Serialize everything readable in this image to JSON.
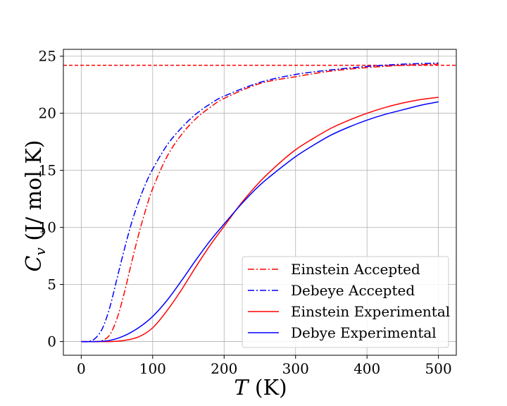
{
  "chart_data": {
    "type": "line",
    "title": "",
    "xlabel": "T (K)",
    "ylabel": "Cv (J/ mol K)",
    "xlim": [
      -25,
      525
    ],
    "ylim": [
      -1.2,
      25.6
    ],
    "xticks": [
      0,
      100,
      200,
      300,
      400,
      500
    ],
    "yticks": [
      0,
      5,
      10,
      15,
      20,
      25
    ],
    "grid": true,
    "legend_position": "lower-right",
    "reference_line": {
      "y": 24.2,
      "color": "#ff0000",
      "style": "dashed"
    },
    "series": [
      {
        "name": "Einstein Accepted",
        "color": "#ff0000",
        "style": "dashdot",
        "x": [
          0,
          20,
          30,
          40,
          50,
          60,
          70,
          80,
          90,
          100,
          120,
          140,
          160,
          180,
          200,
          250,
          300,
          350,
          400,
          450,
          500
        ],
        "y": [
          0,
          0.0,
          0.1,
          0.6,
          2.0,
          4.2,
          6.8,
          9.3,
          11.5,
          13.4,
          16.2,
          18.1,
          19.5,
          20.5,
          21.3,
          22.6,
          23.2,
          23.7,
          24.0,
          24.2,
          24.3
        ]
      },
      {
        "name": "Debeye Accepted",
        "color": "#0000ff",
        "style": "dashdot",
        "x": [
          0,
          10,
          20,
          30,
          40,
          50,
          60,
          70,
          80,
          90,
          100,
          120,
          140,
          160,
          180,
          200,
          250,
          300,
          350,
          400,
          450,
          500
        ],
        "y": [
          0,
          0.0,
          0.3,
          1.2,
          3.0,
          5.5,
          8.0,
          10.3,
          12.2,
          13.8,
          15.1,
          17.2,
          18.7,
          19.9,
          20.8,
          21.5,
          22.7,
          23.4,
          23.8,
          24.1,
          24.3,
          24.4
        ]
      },
      {
        "name": "Einstein Experimental",
        "color": "#ff0000",
        "style": "solid",
        "x": [
          0,
          40,
          60,
          80,
          100,
          120,
          140,
          160,
          180,
          200,
          225,
          250,
          275,
          300,
          325,
          350,
          375,
          400,
          425,
          450,
          475,
          500
        ],
        "y": [
          0,
          0.0,
          0.1,
          0.4,
          1.2,
          2.7,
          4.5,
          6.5,
          8.4,
          10.1,
          12.2,
          14.0,
          15.5,
          16.8,
          17.8,
          18.7,
          19.4,
          20.0,
          20.5,
          20.9,
          21.2,
          21.4
        ]
      },
      {
        "name": "Debye Experimental",
        "color": "#0000ff",
        "style": "solid",
        "x": [
          0,
          20,
          40,
          60,
          80,
          100,
          120,
          140,
          160,
          180,
          200,
          225,
          250,
          275,
          300,
          325,
          350,
          375,
          400,
          425,
          450,
          475,
          500
        ],
        "y": [
          0,
          0.0,
          0.1,
          0.5,
          1.2,
          2.2,
          3.6,
          5.3,
          7.1,
          8.8,
          10.3,
          12.1,
          13.7,
          15.0,
          16.2,
          17.2,
          18.1,
          18.8,
          19.4,
          19.9,
          20.3,
          20.7,
          21.0
        ]
      }
    ]
  }
}
